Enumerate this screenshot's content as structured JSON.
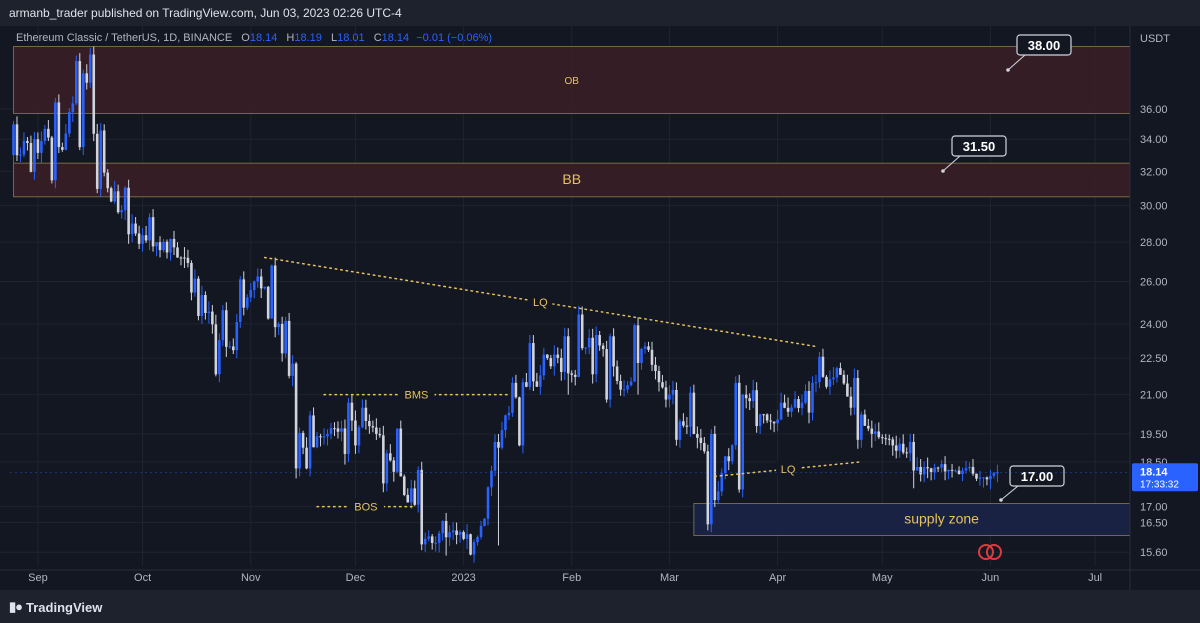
{
  "header": {
    "published_by": "armanb_trader published on TradingView.com, Jun 03, 2023 02:26 UTC-4"
  },
  "legend": {
    "symbol": "Ethereum Classic / TetherUS, 1D, BINANCE",
    "open_label": "O",
    "open": "18.14",
    "high_label": "H",
    "high": "18.19",
    "low_label": "L",
    "low": "18.01",
    "close_label": "C",
    "close": "18.14",
    "change": "−0.01 (−0.06%)"
  },
  "footer": {
    "brand": "TradingView"
  },
  "colors": {
    "background": "#131722",
    "candle_up": "#2962ff",
    "candle_down": "#d1d4dc",
    "annotation": "#e6c35c",
    "zone_fill": "#3a1e26",
    "supply_fill": "#1b2447"
  },
  "chart_data": {
    "type": "candlestick",
    "price_axis_unit": "USDT",
    "y_scale": "log",
    "y_ticks": [
      "15.60",
      "16.50",
      "17.00",
      "18.50",
      "19.50",
      "21.00",
      "22.50",
      "24.00",
      "26.00",
      "28.00",
      "30.00",
      "32.00",
      "34.00",
      "36.00"
    ],
    "x_ticks": [
      "Sep",
      "Oct",
      "Nov",
      "Dec",
      "2023",
      "Feb",
      "Mar",
      "Apr",
      "May",
      "Jun",
      "Jul"
    ],
    "ylim": [
      15.2,
      41
    ],
    "last_price": {
      "value": "18.14",
      "countdown": "17:33:32"
    },
    "zones": [
      {
        "label": "OB",
        "from": 35.7,
        "to": 40.5,
        "start": "2022-08-25"
      },
      {
        "label": "BB",
        "from": 30.5,
        "to": 32.5,
        "start": "2022-08-25"
      },
      {
        "label": "supply zone",
        "from": 16.1,
        "to": 17.1,
        "start": "2023-03-08"
      }
    ],
    "price_callouts": [
      "38.00",
      "31.50",
      "17.00"
    ],
    "annotations": [
      {
        "label": "LQ",
        "kind": "descending trendline",
        "from": [
          "2022-11-05",
          27.2
        ],
        "to": [
          "2023-04-12",
          23.0
        ]
      },
      {
        "label": "BMS",
        "kind": "horizontal",
        "price": 21.0,
        "from": "2022-11-22",
        "to": "2023-01-14"
      },
      {
        "label": "BOS",
        "kind": "horizontal",
        "price": 17.0,
        "from": "2022-11-20",
        "to": "2022-12-18"
      },
      {
        "label": "LQ",
        "kind": "rising line",
        "from": [
          "2023-03-14",
          18.0
        ],
        "to": [
          "2023-04-25",
          18.5
        ]
      }
    ],
    "series": [
      {
        "interval": "weekly candles (approximate, read from daily chart)",
        "candles": [
          {
            "date": "2022-08-25",
            "o": 33.0,
            "h": 35.5,
            "l": 31.5,
            "c": 34.0
          },
          {
            "date": "2022-09-01",
            "o": 34.0,
            "h": 37.0,
            "l": 31.0,
            "c": 33.5
          },
          {
            "date": "2022-09-08",
            "o": 33.5,
            "h": 40.0,
            "l": 33.0,
            "c": 38.5
          },
          {
            "date": "2022-09-15",
            "o": 38.5,
            "h": 40.5,
            "l": 30.5,
            "c": 31.0
          },
          {
            "date": "2022-09-22",
            "o": 31.0,
            "h": 31.5,
            "l": 28.0,
            "c": 29.0
          },
          {
            "date": "2022-09-29",
            "o": 29.0,
            "h": 29.8,
            "l": 27.5,
            "c": 28.0
          },
          {
            "date": "2022-10-06",
            "o": 28.0,
            "h": 28.6,
            "l": 26.8,
            "c": 27.2
          },
          {
            "date": "2022-10-13",
            "o": 27.2,
            "h": 27.6,
            "l": 24.0,
            "c": 24.5
          },
          {
            "date": "2022-10-20",
            "o": 24.5,
            "h": 25.0,
            "l": 21.5,
            "c": 23.0
          },
          {
            "date": "2022-10-27",
            "o": 23.0,
            "h": 26.5,
            "l": 22.5,
            "c": 26.0
          },
          {
            "date": "2022-11-03",
            "o": 26.0,
            "h": 27.2,
            "l": 23.5,
            "c": 24.0
          },
          {
            "date": "2022-11-10",
            "o": 24.0,
            "h": 24.5,
            "l": 18.0,
            "c": 19.0
          },
          {
            "date": "2022-11-17",
            "o": 19.0,
            "h": 20.5,
            "l": 18.0,
            "c": 19.5
          },
          {
            "date": "2022-11-24",
            "o": 19.5,
            "h": 21.0,
            "l": 18.5,
            "c": 20.0
          },
          {
            "date": "2022-12-01",
            "o": 20.0,
            "h": 20.8,
            "l": 18.8,
            "c": 19.5
          },
          {
            "date": "2022-12-08",
            "o": 19.5,
            "h": 20.0,
            "l": 17.5,
            "c": 18.0
          },
          {
            "date": "2022-12-15",
            "o": 18.0,
            "h": 18.5,
            "l": 15.6,
            "c": 16.0
          },
          {
            "date": "2022-12-22",
            "o": 16.0,
            "h": 16.8,
            "l": 15.5,
            "c": 16.2
          },
          {
            "date": "2022-12-29",
            "o": 16.2,
            "h": 16.5,
            "l": 15.3,
            "c": 15.9
          },
          {
            "date": "2023-01-05",
            "o": 15.9,
            "h": 19.5,
            "l": 15.8,
            "c": 19.0
          },
          {
            "date": "2023-01-12",
            "o": 19.0,
            "h": 21.8,
            "l": 18.8,
            "c": 21.5
          },
          {
            "date": "2023-01-19",
            "o": 21.5,
            "h": 23.5,
            "l": 21.0,
            "c": 22.5
          },
          {
            "date": "2023-01-26",
            "o": 22.5,
            "h": 23.8,
            "l": 21.0,
            "c": 21.8
          },
          {
            "date": "2023-02-02",
            "o": 21.8,
            "h": 24.8,
            "l": 21.5,
            "c": 23.5
          },
          {
            "date": "2023-02-09",
            "o": 23.5,
            "h": 23.8,
            "l": 20.5,
            "c": 21.2
          },
          {
            "date": "2023-02-16",
            "o": 21.2,
            "h": 24.3,
            "l": 21.0,
            "c": 23.0
          },
          {
            "date": "2023-02-23",
            "o": 23.0,
            "h": 23.2,
            "l": 20.5,
            "c": 21.0
          },
          {
            "date": "2023-03-02",
            "o": 21.0,
            "h": 21.4,
            "l": 19.0,
            "c": 19.5
          },
          {
            "date": "2023-03-09",
            "o": 19.5,
            "h": 19.8,
            "l": 16.2,
            "c": 17.5
          },
          {
            "date": "2023-03-16",
            "o": 17.5,
            "h": 21.8,
            "l": 17.3,
            "c": 21.0
          },
          {
            "date": "2023-03-23",
            "o": 21.0,
            "h": 21.5,
            "l": 19.5,
            "c": 20.0
          },
          {
            "date": "2023-03-30",
            "o": 20.0,
            "h": 21.0,
            "l": 19.6,
            "c": 20.5
          },
          {
            "date": "2023-04-06",
            "o": 20.5,
            "h": 21.8,
            "l": 20.0,
            "c": 21.5
          },
          {
            "date": "2023-04-13",
            "o": 21.5,
            "h": 22.9,
            "l": 21.0,
            "c": 21.8
          },
          {
            "date": "2023-04-20",
            "o": 21.8,
            "h": 22.0,
            "l": 19.0,
            "c": 19.8
          },
          {
            "date": "2023-04-27",
            "o": 19.8,
            "h": 20.0,
            "l": 19.0,
            "c": 19.3
          },
          {
            "date": "2023-05-04",
            "o": 19.3,
            "h": 19.5,
            "l": 17.6,
            "c": 18.2
          },
          {
            "date": "2023-05-11",
            "o": 18.2,
            "h": 18.6,
            "l": 17.8,
            "c": 18.3
          },
          {
            "date": "2023-05-18",
            "o": 18.3,
            "h": 18.7,
            "l": 17.9,
            "c": 18.2
          },
          {
            "date": "2023-05-25",
            "o": 18.2,
            "h": 18.6,
            "l": 17.7,
            "c": 17.9
          },
          {
            "date": "2023-06-01",
            "o": 17.9,
            "h": 18.4,
            "l": 17.8,
            "c": 18.14
          }
        ]
      }
    ]
  }
}
